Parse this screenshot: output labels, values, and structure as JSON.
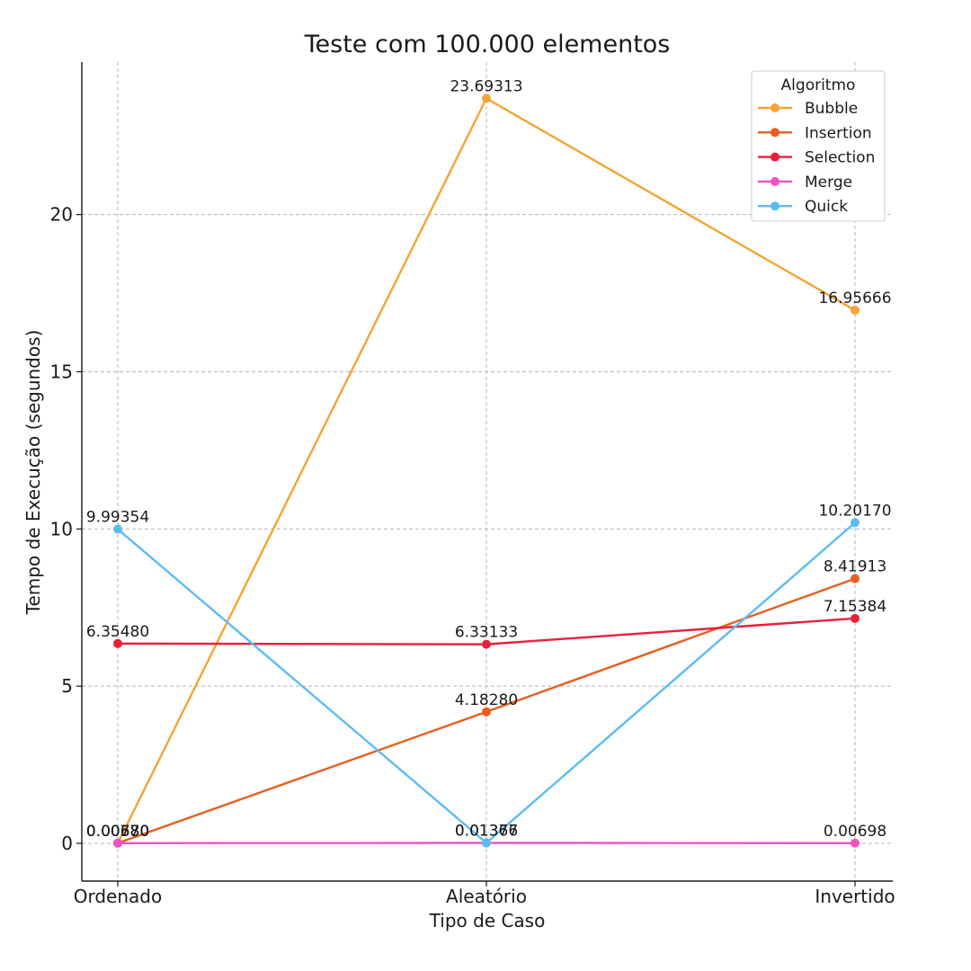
{
  "chart_data": {
    "type": "line",
    "title": "Teste com 100.000 elementos",
    "xlabel": "Tipo de Caso",
    "ylabel": "Tempo de Execução (segundos)",
    "categories": [
      "Ordenado",
      "Aleatório",
      "Invertido"
    ],
    "ylim": [
      -1.2,
      24.85
    ],
    "yticks": [
      0,
      5,
      10,
      15,
      20
    ],
    "grid": true,
    "legend": {
      "title": "Algoritmo",
      "placement": "top-right"
    },
    "series": [
      {
        "name": "Bubble",
        "color": "#f5a431",
        "values": [
          0.0058,
          23.69313,
          16.95666
        ],
        "labels": [
          "0.00580",
          "23.69313",
          "16.95666"
        ]
      },
      {
        "name": "Insertion",
        "color": "#e85d1f",
        "values": [
          0.0077,
          4.1828,
          8.41913
        ],
        "labels": [
          "0.00770",
          "4.18280",
          "8.41913"
        ]
      },
      {
        "name": "Selection",
        "color": "#e8203a",
        "values": [
          6.3548,
          6.33133,
          7.15384
        ],
        "labels": [
          "6.35480",
          "6.33133",
          "7.15384"
        ]
      },
      {
        "name": "Merge",
        "color": "#f052c0",
        "values": [
          0.0068,
          0.01366,
          0.00698
        ],
        "labels": [
          "0.00680",
          "0.01366",
          "0.00698"
        ]
      },
      {
        "name": "Quick",
        "color": "#5bbcf5",
        "values": [
          9.99354,
          0.01377,
          10.2017
        ],
        "labels": [
          "9.99354",
          "0.01377",
          "10.20170"
        ]
      }
    ]
  }
}
